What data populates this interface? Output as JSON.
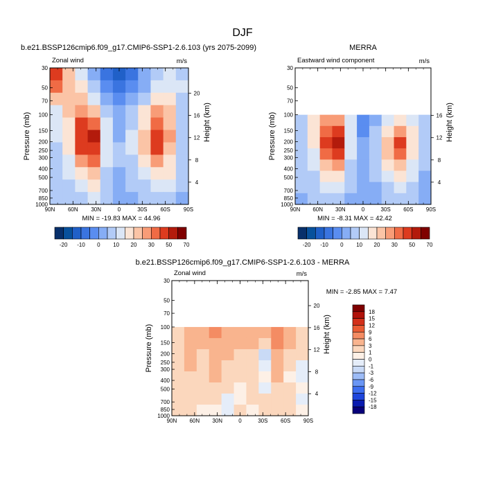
{
  "figure": {
    "title": "DJF"
  },
  "chart_data": [
    {
      "type": "heatmap",
      "title": "b.e21.BSSP126cmip6.f09_g17.CMIP6-SSP1-2.6.103 (yrs 2075-2099)",
      "subtitle_left": "Zonal wind",
      "units": "m/s",
      "ylabel": "Pressure (mb)",
      "ylabel_right": "Height (km)",
      "x_ticks": [
        "90N",
        "60N",
        "30N",
        "0",
        "30S",
        "60S",
        "90S"
      ],
      "y_ticks": [
        "30",
        "50",
        "70",
        "100",
        "150",
        "200",
        "250",
        "300",
        "400",
        "500",
        "700",
        "850",
        "1000"
      ],
      "height_ticks": [
        "20",
        "16",
        "12",
        "8",
        "4"
      ],
      "stats": "MIN = -19.83  MAX =  44.96",
      "min": -19.83,
      "max": 44.96,
      "top_pressure": 30,
      "cells": [
        [
          32,
          18,
          5,
          -4,
          -12,
          -19,
          -12,
          -4,
          3,
          6,
          4
        ],
        [
          26,
          18,
          10,
          2,
          -6,
          -14,
          -8,
          -2,
          6,
          9,
          5
        ],
        [
          15,
          18,
          16,
          8,
          -2,
          -8,
          -3,
          4,
          12,
          12,
          4
        ],
        [
          8,
          16,
          24,
          18,
          4,
          -4,
          2,
          10,
          20,
          16,
          4
        ],
        [
          6,
          14,
          30,
          28,
          6,
          -2,
          4,
          14,
          26,
          18,
          3
        ],
        [
          5,
          12,
          33,
          44,
          8,
          -1,
          6,
          16,
          34,
          20,
          3
        ],
        [
          4,
          10,
          30,
          38,
          8,
          0,
          6,
          16,
          32,
          18,
          2
        ],
        [
          3,
          8,
          22,
          26,
          6,
          0,
          4,
          12,
          22,
          14,
          2
        ],
        [
          2,
          6,
          14,
          16,
          4,
          -1,
          2,
          8,
          14,
          10,
          1
        ],
        [
          1,
          4,
          8,
          10,
          2,
          -2,
          0,
          4,
          8,
          6,
          0
        ],
        [
          0,
          2,
          4,
          5,
          1,
          -2,
          -1,
          2,
          4,
          3,
          -1
        ]
      ]
    },
    {
      "type": "heatmap",
      "title": "MERRA",
      "subtitle_left": "Eastward wind component",
      "units": "m/s",
      "ylabel": "Pressure (mb)",
      "ylabel_right": "Height (km)",
      "x_ticks": [
        "90N",
        "60N",
        "30N",
        "0",
        "30S",
        "60S",
        "90S"
      ],
      "y_ticks": [
        "30",
        "50",
        "70",
        "100",
        "150",
        "200",
        "250",
        "300",
        "400",
        "500",
        "700",
        "850",
        "1000"
      ],
      "height_ticks": [
        "16",
        "12",
        "8",
        "4"
      ],
      "stats": "MIN =  -8.31  MAX =  42.42",
      "min": -8.31,
      "max": 42.42,
      "top_pressure": 100,
      "cells": [
        [
          2,
          10,
          22,
          24,
          6,
          -6,
          -2,
          8,
          14,
          8,
          0
        ],
        [
          2,
          12,
          28,
          30,
          6,
          -6,
          0,
          14,
          22,
          12,
          0
        ],
        [
          2,
          10,
          30,
          42,
          6,
          -4,
          2,
          18,
          30,
          14,
          0
        ],
        [
          1,
          8,
          26,
          34,
          5,
          -3,
          2,
          16,
          28,
          12,
          0
        ],
        [
          1,
          6,
          18,
          22,
          4,
          -2,
          2,
          12,
          18,
          8,
          0
        ],
        [
          0,
          4,
          12,
          14,
          2,
          -2,
          0,
          6,
          10,
          5,
          -1
        ],
        [
          0,
          2,
          6,
          8,
          1,
          -3,
          -1,
          3,
          6,
          3,
          -2
        ],
        [
          -1,
          0,
          2,
          4,
          -1,
          -3,
          -2,
          0,
          2,
          1,
          -2
        ]
      ]
    },
    {
      "type": "heatmap",
      "title": "b.e21.BSSP126cmip6.f09_g17.CMIP6-SSP1-2.6.103 - MERRA",
      "subtitle_left": "Zonal wind",
      "units": "m/s",
      "ylabel": "Pressure (mb)",
      "ylabel_right": "Height (km)",
      "x_ticks": [
        "90N",
        "60N",
        "30N",
        "0",
        "30S",
        "60S",
        "90S"
      ],
      "y_ticks": [
        "30",
        "50",
        "70",
        "100",
        "150",
        "200",
        "250",
        "300",
        "400",
        "500",
        "700",
        "850",
        "1000"
      ],
      "height_ticks": [
        "20",
        "16",
        "12",
        "8",
        "4"
      ],
      "stats": "MIN =  -2.85  MAX =   7.47",
      "min": -2.85,
      "max": 7.47,
      "top_pressure": 100,
      "cells": [
        [
          2,
          4,
          3,
          7,
          4,
          3,
          4,
          5,
          6,
          3,
          1
        ],
        [
          2,
          5,
          3,
          5,
          4,
          3,
          3,
          2,
          7,
          3,
          1
        ],
        [
          1,
          4,
          2,
          4,
          3,
          2,
          2,
          -2,
          5,
          2,
          1
        ],
        [
          1,
          3,
          2,
          3,
          2,
          1,
          2,
          -1,
          4,
          1,
          -1
        ],
        [
          1,
          2,
          1,
          3,
          1,
          1,
          1,
          0,
          3,
          0,
          -1
        ],
        [
          1,
          1,
          1,
          2,
          1,
          0,
          1,
          -1,
          2,
          1,
          0
        ],
        [
          1,
          1,
          1,
          1,
          -1,
          0,
          1,
          1,
          2,
          1,
          -1
        ],
        [
          1,
          1,
          0,
          0,
          -1,
          1,
          0,
          1,
          1,
          1,
          0
        ]
      ]
    }
  ],
  "colorbar_main": {
    "labels": [
      "-20",
      "-10",
      "0",
      "10",
      "20",
      "30",
      "50",
      "70"
    ],
    "colors": [
      "#08306b",
      "#08519c",
      "#2060c8",
      "#3a74e0",
      "#5a8df0",
      "#86adf5",
      "#b2cbf7",
      "#dbe6f6",
      "#fbe4d5",
      "#fbc4a6",
      "#f89c77",
      "#f06b45",
      "#dd3b1f",
      "#b31b0c",
      "#7f0000"
    ],
    "bounds": [
      -25,
      -20,
      -15,
      -10,
      -5,
      0,
      5,
      10,
      15,
      20,
      25,
      30,
      40,
      50,
      70
    ]
  },
  "colorbar_diff": {
    "labels": [
      "18",
      "15",
      "12",
      "9",
      "6",
      "3",
      "1",
      "0",
      "-1",
      "-3",
      "-6",
      "-9",
      "-12",
      "-15",
      "-18"
    ],
    "colors": [
      "#08007a",
      "#0a1bb0",
      "#1e46dc",
      "#3d6ef0",
      "#6a96f5",
      "#9dbcf7",
      "#c9daf6",
      "#e5edf9",
      "#fdf0e6",
      "#fbd7bd",
      "#f9b48e",
      "#f48c63",
      "#ea5c34",
      "#d3301a",
      "#b1120a",
      "#7f0000"
    ],
    "bounds": [
      -18,
      -15,
      -12,
      -9,
      -6,
      -3,
      -1,
      0,
      1,
      3,
      6,
      9,
      12,
      15,
      18
    ]
  }
}
